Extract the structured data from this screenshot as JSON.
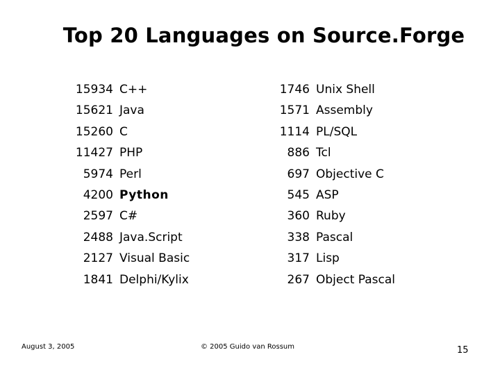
{
  "slide": {
    "title": "Top 20  Languages on Source.Forge",
    "left_column": [
      {
        "count": "15934",
        "language": "C++"
      },
      {
        "count": "15621",
        "language": "Java"
      },
      {
        "count": "15260",
        "language": "C"
      },
      {
        "count": "11427",
        "language": "PHP"
      },
      {
        "count": "5974",
        "language": "Perl"
      },
      {
        "count": "4200",
        "language": "Python",
        "bold": true
      },
      {
        "count": "2597",
        "language": "C#"
      },
      {
        "count": "2488",
        "language": "Java.Script"
      },
      {
        "count": "2127",
        "language": "Visual Basic"
      },
      {
        "count": "1841",
        "language": "Delphi/Kylix"
      }
    ],
    "right_column": [
      {
        "count": "1746",
        "language": "Unix Shell"
      },
      {
        "count": "1571",
        "language": "Assembly"
      },
      {
        "count": "1114",
        "language": "PL/SQL"
      },
      {
        "count": "886",
        "language": "Tcl"
      },
      {
        "count": "697",
        "language": "Objective C"
      },
      {
        "count": "545",
        "language": "ASP"
      },
      {
        "count": "360",
        "language": "Ruby"
      },
      {
        "count": "338",
        "language": "Pascal"
      },
      {
        "count": "317",
        "language": "Lisp"
      },
      {
        "count": "267",
        "language": "Object Pascal"
      }
    ]
  },
  "footer": {
    "date": "August 3, 2005",
    "copyright": "© 2005 Guido van Rossum",
    "page_number": "15"
  }
}
